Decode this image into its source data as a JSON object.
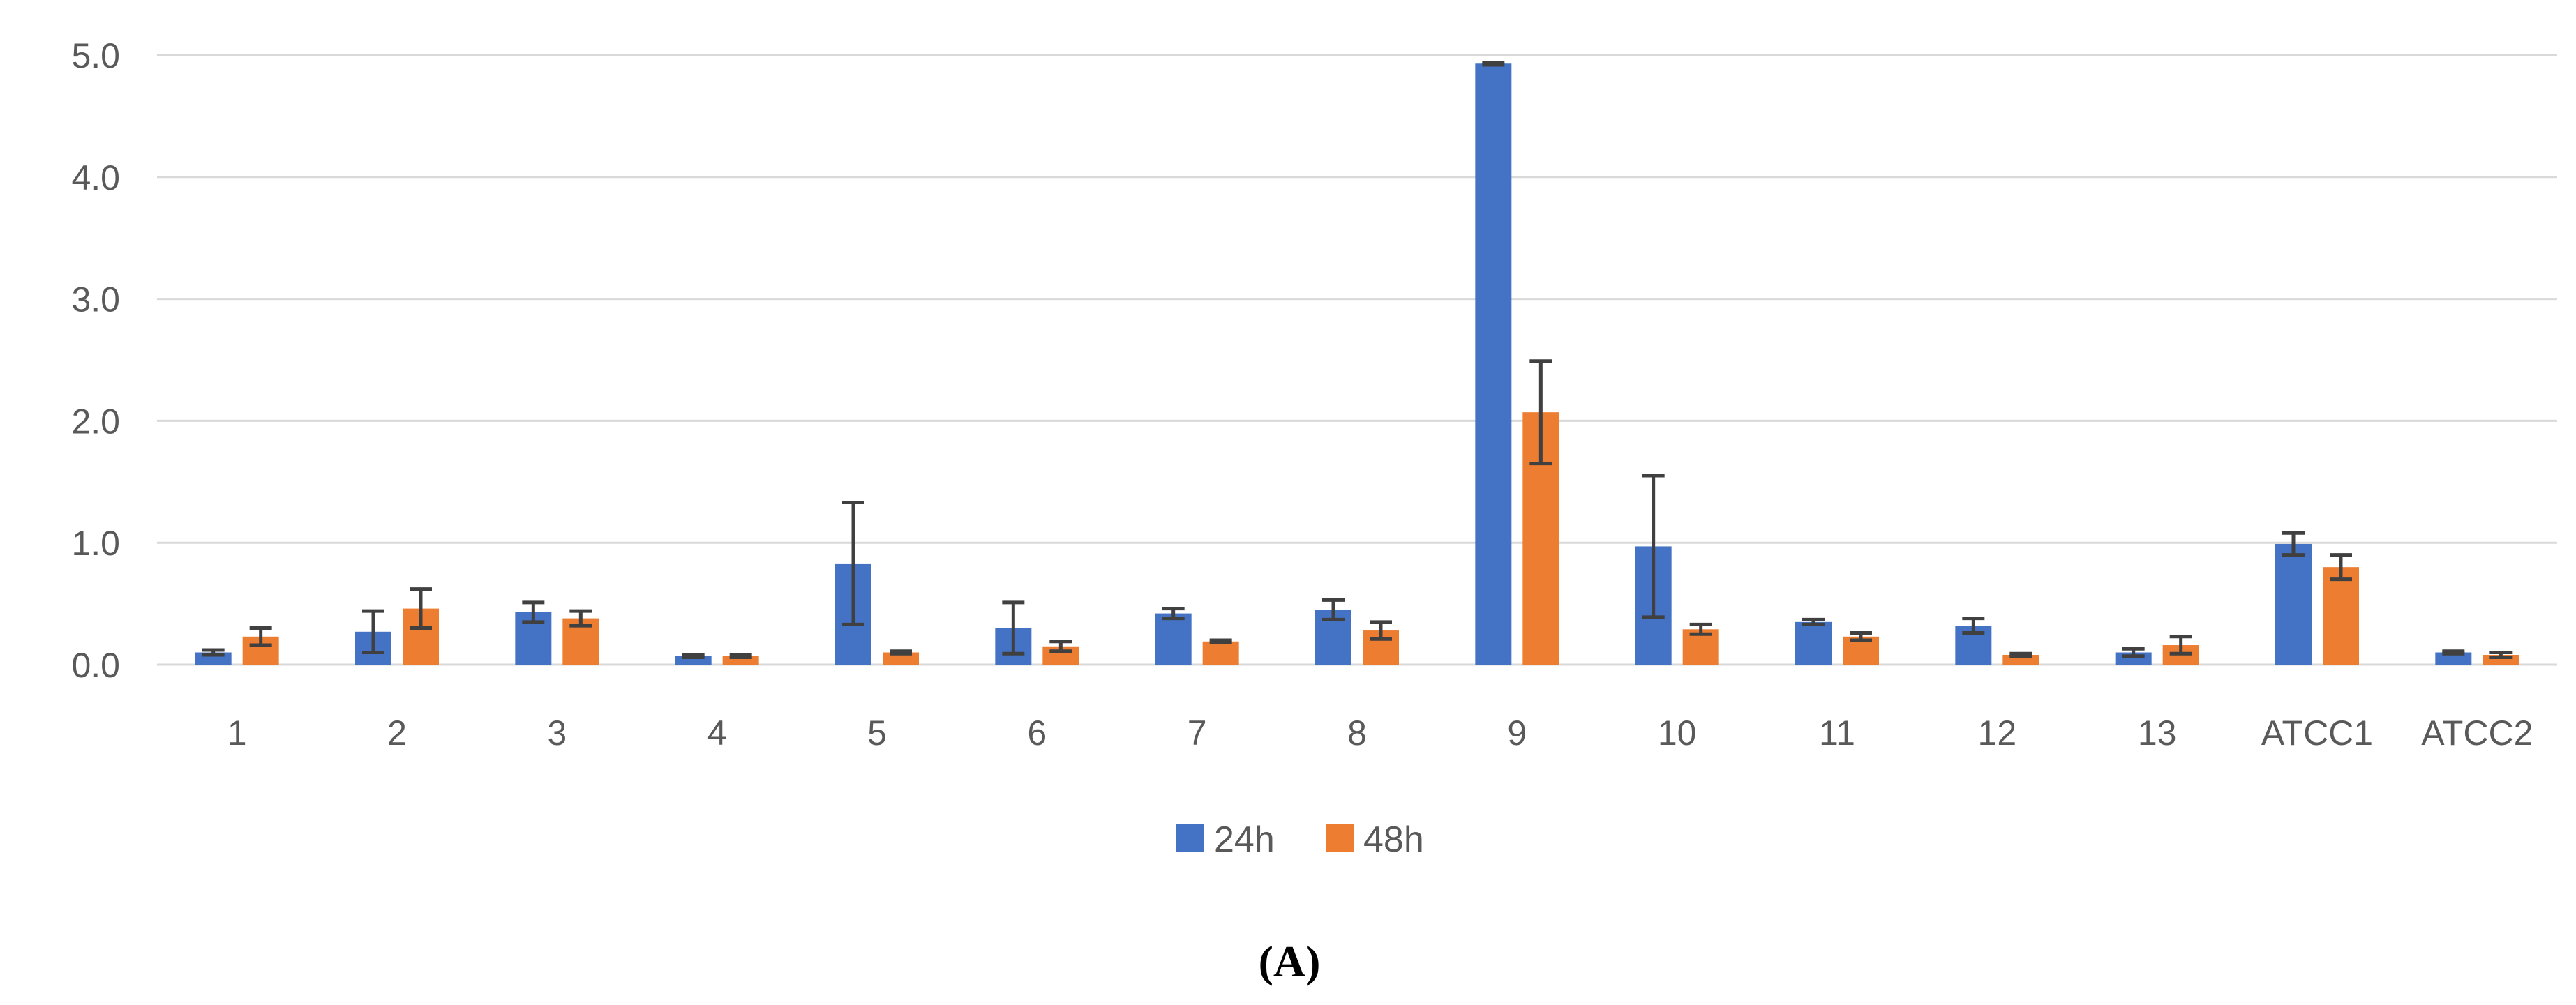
{
  "chart_data": {
    "type": "bar",
    "title": "",
    "xlabel": "",
    "ylabel": "",
    "ylim": [
      0,
      5.0
    ],
    "yticks": [
      "0.0",
      "1.0",
      "2.0",
      "3.0",
      "4.0",
      "5.0"
    ],
    "ytick_values": [
      0,
      1,
      2,
      3,
      4,
      5
    ],
    "grid": true,
    "legend_position": "bottom-center",
    "categories": [
      "1",
      "2",
      "3",
      "4",
      "5",
      "6",
      "7",
      "8",
      "9",
      "10",
      "11",
      "12",
      "13",
      "ATCC1",
      "ATCC2"
    ],
    "series": [
      {
        "name": "24h",
        "color": "#4472C4",
        "values": [
          0.1,
          0.27,
          0.43,
          0.07,
          0.83,
          0.3,
          0.42,
          0.45,
          4.93,
          0.97,
          0.35,
          0.32,
          0.1,
          0.99,
          0.1
        ],
        "errors": [
          0.02,
          0.17,
          0.08,
          0.01,
          0.5,
          0.21,
          0.04,
          0.08,
          0.01,
          0.58,
          0.02,
          0.06,
          0.03,
          0.09,
          0.01
        ]
      },
      {
        "name": "48h",
        "color": "#ED7D31",
        "values": [
          0.23,
          0.46,
          0.38,
          0.07,
          0.1,
          0.15,
          0.19,
          0.28,
          2.07,
          0.29,
          0.23,
          0.08,
          0.16,
          0.8,
          0.08
        ],
        "errors": [
          0.07,
          0.16,
          0.06,
          0.01,
          0.01,
          0.04,
          0.01,
          0.07,
          0.42,
          0.04,
          0.03,
          0.01,
          0.07,
          0.1,
          0.02
        ]
      }
    ],
    "error_bar_color": "#404040",
    "panel_label": "(A)"
  }
}
